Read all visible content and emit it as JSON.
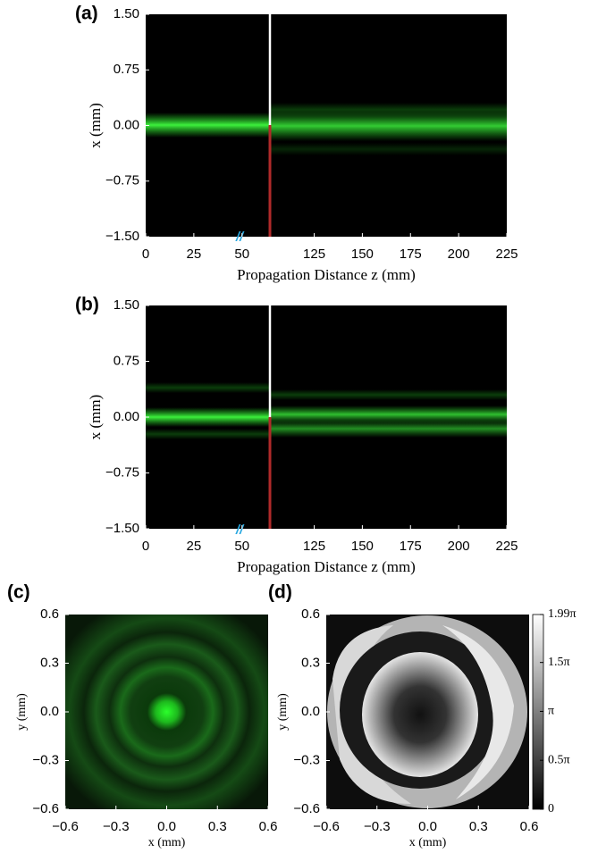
{
  "chart_data": [
    {
      "type": "heatmap",
      "panel_label": "(a)",
      "xlabel": "Propagation Distance z (mm)",
      "ylabel": "x (mm)",
      "xlim": [
        0,
        225
      ],
      "xbreak": [
        62.5,
        100
      ],
      "xticks": [
        0,
        25,
        50,
        125,
        150,
        175,
        200,
        225
      ],
      "ylim": [
        -1.5,
        1.5
      ],
      "yticks": [
        {
          "value": -1.5,
          "label": "−1.50"
        },
        {
          "value": -0.75,
          "label": "−0.75"
        },
        {
          "value": 0,
          "label": "0.00"
        },
        0.75,
        {
          "value": 1.5,
          "label": "1.50"
        }
      ],
      "colormap": "green"
    },
    {
      "type": "heatmap",
      "panel_label": "(b)",
      "xlabel": "Propagation Distance z (mm)",
      "ylabel": "x (mm)",
      "xlim": [
        0,
        225
      ],
      "xbreak": [
        62.5,
        100
      ],
      "xticks": [
        0,
        25,
        50,
        125,
        150,
        175,
        200,
        225
      ],
      "ylim": [
        -1.5,
        1.5
      ],
      "yticks": [
        {
          "value": -1.5,
          "label": "−1.50"
        },
        {
          "value": -0.75,
          "label": "−0.75"
        },
        {
          "value": 0,
          "label": "0.00"
        },
        0.75,
        {
          "value": 1.5,
          "label": "1.50"
        }
      ],
      "colormap": "green"
    },
    {
      "type": "heatmap",
      "panel_label": "(c)",
      "xlabel": "x (mm)",
      "ylabel": "y (mm)",
      "xlim": [
        -0.6,
        0.6
      ],
      "xticks": [
        {
          "value": -0.6,
          "label": "−0.6"
        },
        {
          "value": -0.3,
          "label": "−0.3"
        },
        {
          "value": 0,
          "label": "0.0"
        },
        0.3,
        0.6
      ],
      "ylim": [
        -0.6,
        0.6
      ],
      "yticks": [
        {
          "value": -0.6,
          "label": "−0.6"
        },
        {
          "value": -0.3,
          "label": "−0.3"
        },
        {
          "value": 0,
          "label": "0.0"
        },
        0.3,
        0.6
      ],
      "colormap": "green"
    },
    {
      "type": "heatmap",
      "panel_label": "(d)",
      "xlabel": "x (mm)",
      "ylabel": "y (mm)",
      "xlim": [
        -0.6,
        0.6
      ],
      "xticks": [
        {
          "value": -0.6,
          "label": "−0.6"
        },
        {
          "value": -0.3,
          "label": "−0.3"
        },
        {
          "value": 0,
          "label": "0.0"
        },
        0.3,
        0.6
      ],
      "ylim": [
        -0.6,
        0.6
      ],
      "yticks": [
        {
          "value": -0.6,
          "label": "−0.6"
        },
        {
          "value": -0.3,
          "label": "−0.3"
        },
        {
          "value": 0,
          "label": "0.0"
        },
        0.3,
        0.6
      ],
      "colormap": "gray",
      "colorbar": {
        "lim": [
          0,
          1.99
        ],
        "ticks": [
          0,
          {
            "value": 0.5,
            "label": "0.5π"
          },
          {
            "value": 1,
            "label": "π"
          },
          {
            "value": 1.5,
            "label": "1.5π"
          },
          {
            "value": 1.99,
            "label": "1.99π"
          }
        ]
      }
    }
  ]
}
